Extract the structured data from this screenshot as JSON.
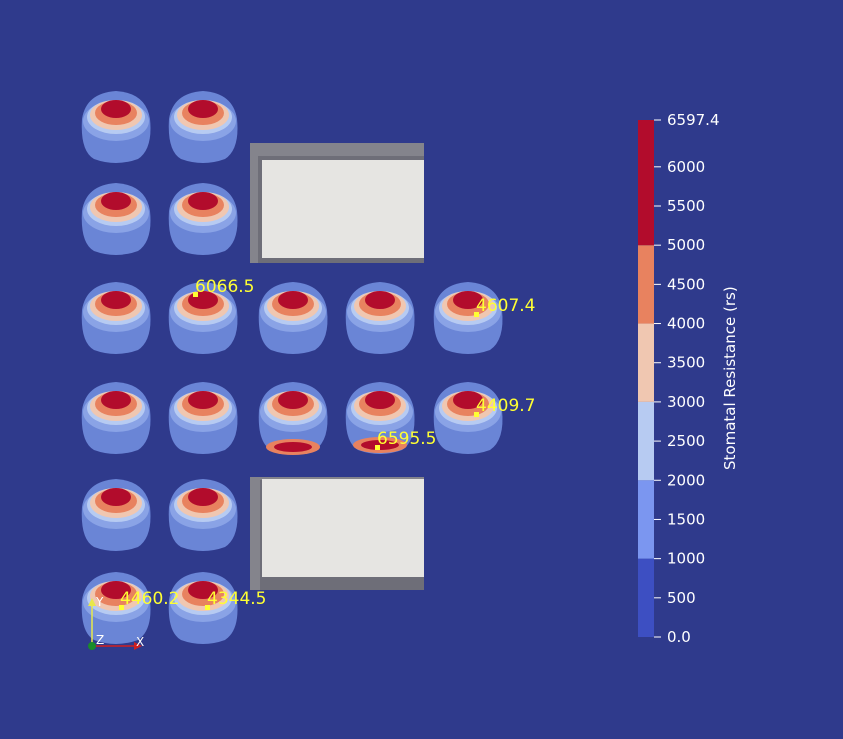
{
  "background": "#2f3a8c",
  "legend": {
    "title": "Stomatal Resistance (rs)",
    "range": [
      0.0,
      6597.4
    ],
    "tick_labels": [
      {
        "value": 6597.4,
        "label": "6597.4"
      },
      {
        "value": 6000,
        "label": "6000"
      },
      {
        "value": 5500,
        "label": "5500"
      },
      {
        "value": 5000,
        "label": "5000"
      },
      {
        "value": 4500,
        "label": "4500"
      },
      {
        "value": 4000,
        "label": "4000"
      },
      {
        "value": 3500,
        "label": "3500"
      },
      {
        "value": 3000,
        "label": "3000"
      },
      {
        "value": 2500,
        "label": "2500"
      },
      {
        "value": 2000,
        "label": "2000"
      },
      {
        "value": 1500,
        "label": "1500"
      },
      {
        "value": 1000,
        "label": "1000"
      },
      {
        "value": 500,
        "label": "500"
      },
      {
        "value": 0.0,
        "label": "0.0"
      }
    ],
    "bands": [
      {
        "from": 0,
        "to": 1000,
        "color": "#3d4fc2"
      },
      {
        "from": 1000,
        "to": 2000,
        "color": "#7b96f0"
      },
      {
        "from": 2000,
        "to": 3000,
        "color": "#b7cbf2"
      },
      {
        "from": 3000,
        "to": 4000,
        "color": "#f0c7b1"
      },
      {
        "from": 4000,
        "to": 5000,
        "color": "#e8825f"
      },
      {
        "from": 5000,
        "to": 6597.4,
        "color": "#b20c2c"
      }
    ]
  },
  "probes": [
    {
      "label": "6066.5"
    },
    {
      "label": "4607.4"
    },
    {
      "label": "4409.7"
    },
    {
      "label": "6595.5"
    },
    {
      "label": "4460.2"
    },
    {
      "label": "4344.5"
    }
  ],
  "axes_triad": {
    "y": "Y",
    "z": "Z",
    "x": "X"
  },
  "colors": {
    "probe": "#ffff33",
    "panel_face": "#e6e5e2",
    "panel_frame": "#6e6e78"
  }
}
